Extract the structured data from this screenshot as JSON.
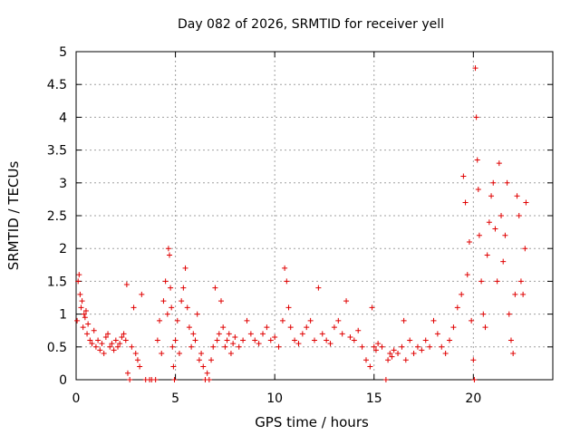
{
  "chart_data": {
    "type": "scatter",
    "title": "Day 082 of 2026, SRMTID for receiver yell",
    "xlabel": "GPS time / hours",
    "ylabel": "SRMTID / TECUs",
    "xlim": [
      0,
      24
    ],
    "ylim": [
      0,
      5
    ],
    "xticks": [
      0,
      5,
      10,
      15,
      20
    ],
    "xtick_labels": [
      "0",
      "5",
      "10",
      "15",
      "20"
    ],
    "yticks": [
      0,
      0.5,
      1,
      1.5,
      2,
      2.5,
      3,
      3.5,
      4,
      4.5,
      5
    ],
    "ytick_labels": [
      "0",
      "0.5",
      "1",
      "1.5",
      "2",
      "2.5",
      "3",
      "3.5",
      "4",
      "4.5",
      "5"
    ],
    "grid": true,
    "marker": "plus",
    "series": [
      {
        "name": "SRMTID",
        "color": "#e00000",
        "points": [
          [
            0.05,
            0.9
          ],
          [
            0.1,
            1.5
          ],
          [
            0.15,
            1.6
          ],
          [
            0.2,
            1.3
          ],
          [
            0.25,
            1.1
          ],
          [
            0.3,
            1.2
          ],
          [
            0.35,
            0.8
          ],
          [
            0.4,
            1.0
          ],
          [
            0.45,
            0.95
          ],
          [
            0.5,
            1.05
          ],
          [
            0.55,
            0.7
          ],
          [
            0.6,
            0.85
          ],
          [
            0.7,
            0.6
          ],
          [
            0.8,
            0.55
          ],
          [
            0.9,
            0.75
          ],
          [
            1.0,
            0.5
          ],
          [
            1.1,
            0.6
          ],
          [
            1.2,
            0.45
          ],
          [
            1.3,
            0.55
          ],
          [
            1.4,
            0.4
          ],
          [
            1.5,
            0.65
          ],
          [
            1.6,
            0.7
          ],
          [
            1.7,
            0.5
          ],
          [
            1.8,
            0.55
          ],
          [
            1.9,
            0.45
          ],
          [
            2.0,
            0.6
          ],
          [
            2.1,
            0.5
          ],
          [
            2.2,
            0.55
          ],
          [
            2.3,
            0.65
          ],
          [
            2.4,
            0.7
          ],
          [
            2.5,
            0.6
          ],
          [
            2.55,
            1.45
          ],
          [
            2.6,
            0.1
          ],
          [
            2.7,
            0.0
          ],
          [
            2.8,
            0.5
          ],
          [
            2.9,
            1.1
          ],
          [
            3.0,
            0.4
          ],
          [
            3.1,
            0.3
          ],
          [
            3.2,
            0.2
          ],
          [
            3.3,
            1.3
          ],
          [
            3.5,
            0.0
          ],
          [
            3.7,
            0.0
          ],
          [
            3.8,
            0.0
          ],
          [
            4.0,
            0.0
          ],
          [
            4.1,
            0.6
          ],
          [
            4.2,
            0.9
          ],
          [
            4.3,
            0.4
          ],
          [
            4.4,
            1.2
          ],
          [
            4.5,
            1.5
          ],
          [
            4.6,
            1.0
          ],
          [
            4.65,
            2.0
          ],
          [
            4.7,
            1.9
          ],
          [
            4.75,
            1.4
          ],
          [
            4.8,
            1.1
          ],
          [
            4.85,
            0.5
          ],
          [
            4.9,
            0.2
          ],
          [
            4.95,
            0.0
          ],
          [
            5.0,
            0.6
          ],
          [
            5.1,
            0.9
          ],
          [
            5.2,
            0.4
          ],
          [
            5.3,
            1.2
          ],
          [
            5.4,
            1.4
          ],
          [
            5.5,
            1.7
          ],
          [
            5.6,
            1.1
          ],
          [
            5.7,
            0.8
          ],
          [
            5.8,
            0.5
          ],
          [
            5.9,
            0.7
          ],
          [
            6.0,
            0.6
          ],
          [
            6.1,
            1.0
          ],
          [
            6.2,
            0.3
          ],
          [
            6.3,
            0.4
          ],
          [
            6.4,
            0.2
          ],
          [
            6.5,
            0.0
          ],
          [
            6.6,
            0.1
          ],
          [
            6.7,
            0.0
          ],
          [
            6.8,
            0.3
          ],
          [
            6.9,
            0.5
          ],
          [
            7.0,
            1.4
          ],
          [
            7.1,
            0.6
          ],
          [
            7.2,
            0.7
          ],
          [
            7.3,
            1.2
          ],
          [
            7.4,
            0.8
          ],
          [
            7.5,
            0.5
          ],
          [
            7.6,
            0.6
          ],
          [
            7.7,
            0.7
          ],
          [
            7.8,
            0.4
          ],
          [
            7.9,
            0.55
          ],
          [
            8.0,
            0.65
          ],
          [
            8.2,
            0.5
          ],
          [
            8.4,
            0.6
          ],
          [
            8.6,
            0.9
          ],
          [
            8.8,
            0.7
          ],
          [
            9.0,
            0.6
          ],
          [
            9.2,
            0.55
          ],
          [
            9.4,
            0.7
          ],
          [
            9.6,
            0.8
          ],
          [
            9.8,
            0.6
          ],
          [
            10.0,
            0.65
          ],
          [
            10.2,
            0.5
          ],
          [
            10.4,
            0.9
          ],
          [
            10.5,
            1.7
          ],
          [
            10.6,
            1.5
          ],
          [
            10.7,
            1.1
          ],
          [
            10.8,
            0.8
          ],
          [
            11.0,
            0.6
          ],
          [
            11.2,
            0.55
          ],
          [
            11.4,
            0.7
          ],
          [
            11.6,
            0.8
          ],
          [
            11.8,
            0.9
          ],
          [
            12.0,
            0.6
          ],
          [
            12.2,
            1.4
          ],
          [
            12.4,
            0.7
          ],
          [
            12.6,
            0.6
          ],
          [
            12.8,
            0.55
          ],
          [
            13.0,
            0.8
          ],
          [
            13.2,
            0.9
          ],
          [
            13.4,
            0.7
          ],
          [
            13.6,
            1.2
          ],
          [
            13.8,
            0.65
          ],
          [
            14.0,
            0.6
          ],
          [
            14.2,
            0.75
          ],
          [
            14.4,
            0.5
          ],
          [
            14.6,
            0.3
          ],
          [
            14.8,
            0.2
          ],
          [
            14.9,
            1.1
          ],
          [
            15.0,
            0.5
          ],
          [
            15.1,
            0.45
          ],
          [
            15.2,
            0.55
          ],
          [
            15.4,
            0.5
          ],
          [
            15.6,
            0.0
          ],
          [
            15.7,
            0.3
          ],
          [
            15.8,
            0.4
          ],
          [
            15.9,
            0.35
          ],
          [
            16.0,
            0.45
          ],
          [
            16.2,
            0.4
          ],
          [
            16.4,
            0.5
          ],
          [
            16.5,
            0.9
          ],
          [
            16.6,
            0.3
          ],
          [
            16.8,
            0.6
          ],
          [
            17.0,
            0.4
          ],
          [
            17.2,
            0.5
          ],
          [
            17.4,
            0.45
          ],
          [
            17.6,
            0.6
          ],
          [
            17.8,
            0.5
          ],
          [
            18.0,
            0.9
          ],
          [
            18.2,
            0.7
          ],
          [
            18.4,
            0.5
          ],
          [
            18.6,
            0.4
          ],
          [
            18.8,
            0.6
          ],
          [
            19.0,
            0.8
          ],
          [
            19.2,
            1.1
          ],
          [
            19.4,
            1.3
          ],
          [
            19.5,
            3.1
          ],
          [
            19.6,
            2.7
          ],
          [
            19.7,
            1.6
          ],
          [
            19.8,
            2.1
          ],
          [
            19.9,
            0.9
          ],
          [
            20.0,
            0.3
          ],
          [
            20.05,
            0.0
          ],
          [
            20.1,
            4.75
          ],
          [
            20.15,
            4.0
          ],
          [
            20.2,
            3.35
          ],
          [
            20.25,
            2.9
          ],
          [
            20.3,
            2.2
          ],
          [
            20.4,
            1.5
          ],
          [
            20.5,
            1.0
          ],
          [
            20.6,
            0.8
          ],
          [
            20.7,
            1.9
          ],
          [
            20.8,
            2.4
          ],
          [
            20.9,
            2.8
          ],
          [
            21.0,
            3.0
          ],
          [
            21.1,
            2.3
          ],
          [
            21.2,
            1.5
          ],
          [
            21.3,
            3.3
          ],
          [
            21.4,
            2.5
          ],
          [
            21.5,
            1.8
          ],
          [
            21.6,
            2.2
          ],
          [
            21.7,
            3.0
          ],
          [
            21.8,
            1.0
          ],
          [
            21.9,
            0.6
          ],
          [
            22.0,
            0.4
          ],
          [
            22.1,
            1.3
          ],
          [
            22.2,
            2.8
          ],
          [
            22.3,
            2.5
          ],
          [
            22.4,
            1.5
          ],
          [
            22.5,
            1.3
          ],
          [
            22.6,
            2.0
          ],
          [
            22.65,
            2.7
          ]
        ]
      }
    ]
  }
}
